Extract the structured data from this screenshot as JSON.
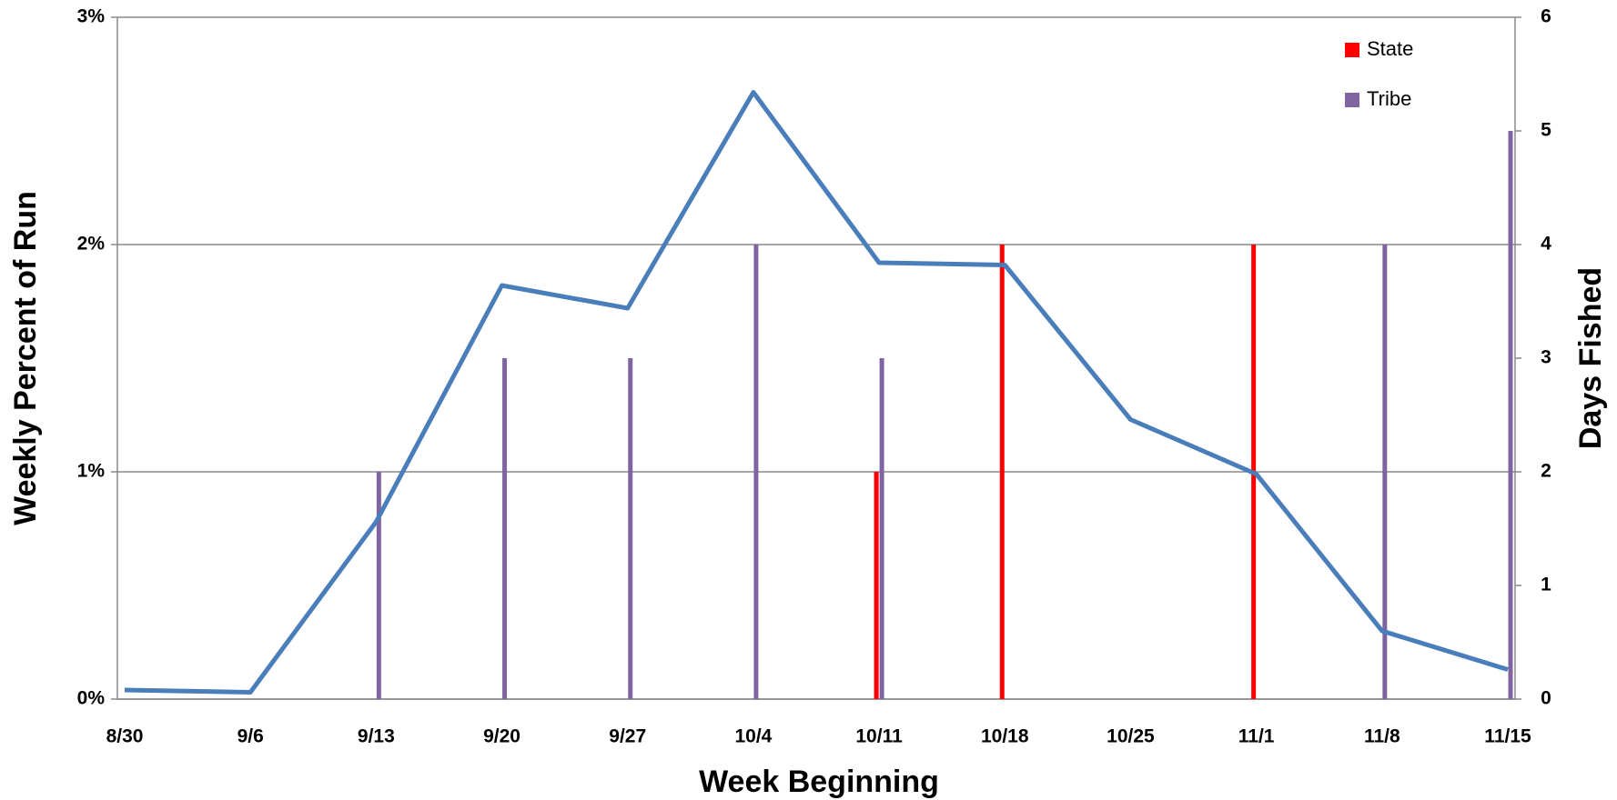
{
  "chart_data": {
    "type": "bar-line",
    "x_label": "Week Beginning",
    "y_label": "Weekly Percent of Run",
    "y2_label": "Days Fished",
    "categories": [
      "8/30",
      "9/6",
      "9/13",
      "9/20",
      "9/27",
      "10/4",
      "10/11",
      "10/18",
      "10/25",
      "11/1",
      "11/8",
      "11/15"
    ],
    "series": [
      {
        "type": "line",
        "color": "#4a7ebb",
        "values": [
          0.04,
          0.03,
          0.78,
          1.82,
          1.72,
          2.67,
          1.92,
          1.91,
          1.23,
          0.99,
          0.3,
          0.13
        ]
      },
      {
        "name": "State",
        "type": "bar",
        "axis": "y2",
        "color": "#ff0000",
        "values": [
          null,
          null,
          null,
          null,
          null,
          null,
          2,
          4,
          null,
          4,
          null,
          null
        ]
      },
      {
        "name": "Tribe",
        "type": "bar",
        "axis": "y2",
        "color": "#8064a2",
        "values": [
          null,
          null,
          2,
          3,
          3,
          4,
          3,
          null,
          null,
          null,
          4,
          5
        ]
      }
    ],
    "ylim": [
      0,
      3
    ],
    "yticks": [
      {
        "value": 0,
        "label": "0%"
      },
      {
        "value": 1,
        "label": "1%"
      },
      {
        "value": 2,
        "label": "2%"
      },
      {
        "value": 3,
        "label": "3%"
      }
    ],
    "y2lim": [
      0,
      6
    ],
    "y2ticks": [
      0,
      1,
      2,
      3,
      4,
      5,
      6
    ],
    "grid": true,
    "legend": "upper right"
  }
}
